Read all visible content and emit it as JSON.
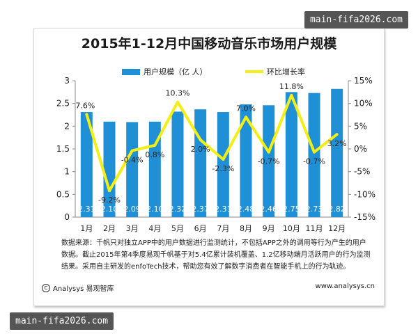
{
  "title": "2015年1-12月中国移动音乐市场用户规模",
  "legend": {
    "bar_label": "用户规模（亿  人）",
    "line_label": "环比增长率"
  },
  "colors": {
    "bar": "#1f8fd6",
    "line": "#f5ee15",
    "axis": "#888888"
  },
  "note": {
    "line1": "数据来源：千帆只对独立APP中的用户数据进行监测统计，不包括APP之外的调用等行为产生的用户",
    "line2": "数据。截止2015年第4季度易观千帆基于对5.4亿累计装机覆盖、1.2亿移动端月活跃用户的行为监测",
    "line3": "结果。采用自主研发的enfoTech技术，帮助您有效了解数字消费者在智能手机上的行为轨迹。"
  },
  "footer": {
    "brand": "Analysys 易观智库",
    "copyright_icon": "copyright-icon",
    "url": "www.analysys.cn"
  },
  "watermark": "main-fifa2026.com",
  "chart_data": {
    "type": "bar",
    "title": "2015年1-12月中国移动音乐市场用户规模",
    "categories": [
      "1月",
      "2月",
      "3月",
      "4月",
      "5月",
      "6月",
      "7月",
      "8月",
      "9月",
      "10月",
      "11月",
      "12月"
    ],
    "series": [
      {
        "name": "用户规模（亿  人）",
        "type": "bar",
        "axis": "left",
        "values": [
          2.31,
          2.1,
          2.09,
          2.1,
          2.32,
          2.37,
          2.31,
          2.48,
          2.46,
          2.75,
          2.73,
          2.82
        ],
        "labels": [
          "2.31",
          "2.10",
          "2.09",
          "2.10",
          "2.32",
          "2.37",
          "2.31",
          "2.48",
          "2.46",
          "2.75",
          "2.73",
          "2.82"
        ]
      },
      {
        "name": "环比增长率",
        "type": "line",
        "axis": "right",
        "values": [
          7.6,
          -9.2,
          -0.4,
          0.8,
          10.3,
          2.0,
          -2.3,
          7.0,
          -0.7,
          11.8,
          -0.7,
          3.2
        ],
        "labels": [
          "7.6%",
          "-9.2%",
          "-0.4%",
          "0.8%",
          "10.3%",
          "2.0%",
          "-2.3%",
          "7.0%",
          "-0.7%",
          "11.8%",
          "-0.7%",
          "3.2%"
        ]
      }
    ],
    "y_left": {
      "ylim": [
        0,
        3
      ],
      "ticks": [
        0,
        0.5,
        1,
        1.5,
        2,
        2.5,
        3
      ],
      "tick_labels": [
        "0",
        "0.5",
        "1",
        "1.5",
        "2",
        "2.5",
        "3"
      ]
    },
    "y_right": {
      "ylim": [
        -15,
        15
      ],
      "ticks": [
        -15,
        -10,
        -5,
        0,
        5,
        10,
        15
      ],
      "tick_labels": [
        "-15%",
        "-10%",
        "-5%",
        "0%",
        "5%",
        "10%",
        "15%"
      ]
    },
    "grid": false,
    "legend_position": "top"
  }
}
